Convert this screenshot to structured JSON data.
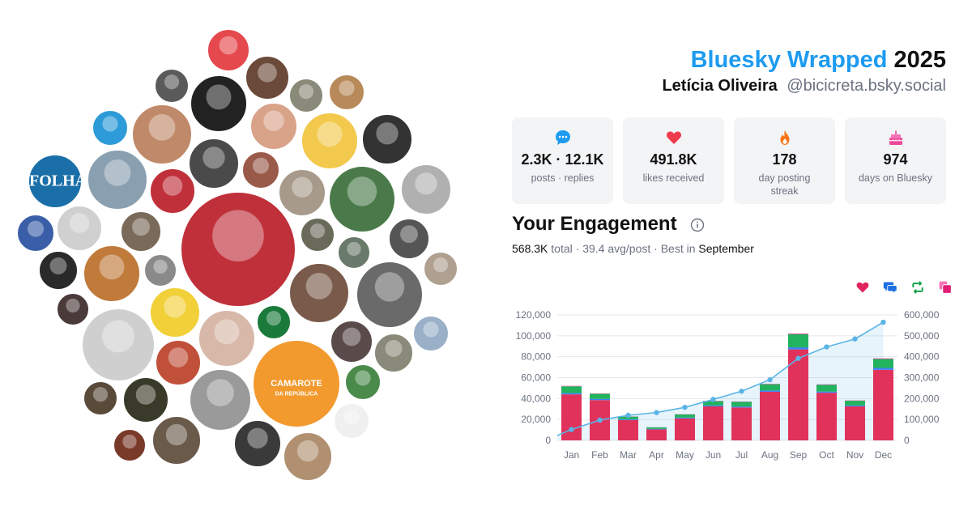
{
  "header": {
    "brand": "Bluesky Wrapped",
    "year": "2025",
    "user_name": "Letícia Oliveira",
    "user_handle": "@bicicreta.bsky.social"
  },
  "stats": [
    {
      "icon": "chat-bubble-icon",
      "value": "2.3K · 12.1K",
      "label": "posts · replies"
    },
    {
      "icon": "heart-icon",
      "value": "491.8K",
      "label": "likes received"
    },
    {
      "icon": "flame-icon",
      "value": "178",
      "label": "day posting streak"
    },
    {
      "icon": "cake-icon",
      "value": "974",
      "label": "days on Bluesky"
    }
  ],
  "engagement": {
    "title": "Your Engagement",
    "total_value": "568.3K",
    "total_word": "total",
    "avg_text": "39.4 avg/post",
    "best_prefix": "Best in",
    "best_month": "September"
  },
  "legend": [
    {
      "icon": "heart-icon",
      "color": "#e0245e"
    },
    {
      "icon": "reply-icon",
      "color": "#1d6fe0"
    },
    {
      "icon": "repost-icon",
      "color": "#16a34a"
    },
    {
      "icon": "quote-icon",
      "color": "#e24b9b"
    }
  ],
  "avatars": [
    {
      "label": "FOLHA",
      "bg": "#1a6fa8",
      "fg": "#ffffff"
    },
    {
      "label": "CAMAROTE",
      "sublabel": "DA REPÚBLICA",
      "bg": "#f29a2e",
      "fg": "#ffffff"
    }
  ],
  "chart_data": {
    "type": "bar",
    "categories": [
      "Jan",
      "Feb",
      "Mar",
      "Apr",
      "May",
      "Jun",
      "Jul",
      "Aug",
      "Sep",
      "Oct",
      "Nov",
      "Dec"
    ],
    "series": [
      {
        "values": [
          44000,
          38500,
          19500,
          10500,
          21000,
          32500,
          31500,
          46500,
          87000,
          45500,
          32500,
          67500
        ],
        "color": "#e0325b"
      },
      {
        "values": [
          1200,
          1100,
          700,
          500,
          800,
          1000,
          900,
          1200,
          2000,
          1200,
          900,
          1800
        ],
        "color": "#3b82f6"
      },
      {
        "values": [
          6500,
          5000,
          2500,
          1500,
          3000,
          4000,
          4500,
          6000,
          12500,
          6500,
          4500,
          8500
        ],
        "color": "#22b35e"
      },
      {
        "values": [
          400,
          300,
          200,
          100,
          200,
          300,
          300,
          400,
          700,
          400,
          300,
          600
        ],
        "color": "#e24b9b"
      }
    ],
    "cumulative": {
      "values": [
        52000,
        97000,
        120000,
        133000,
        158000,
        196000,
        235000,
        290000,
        392000,
        447000,
        485000,
        565000
      ],
      "color": "#5ab4e6"
    },
    "ylim": [
      0,
      120000
    ],
    "y2lim": [
      0,
      600000
    ],
    "y_ticks": [
      "0",
      "20,000",
      "40,000",
      "60,000",
      "80,000",
      "100,000",
      "120,000"
    ],
    "y2_ticks": [
      "0",
      "100,000",
      "200,000",
      "300,000",
      "400,000",
      "500,000",
      "600,000"
    ],
    "grid": true
  }
}
